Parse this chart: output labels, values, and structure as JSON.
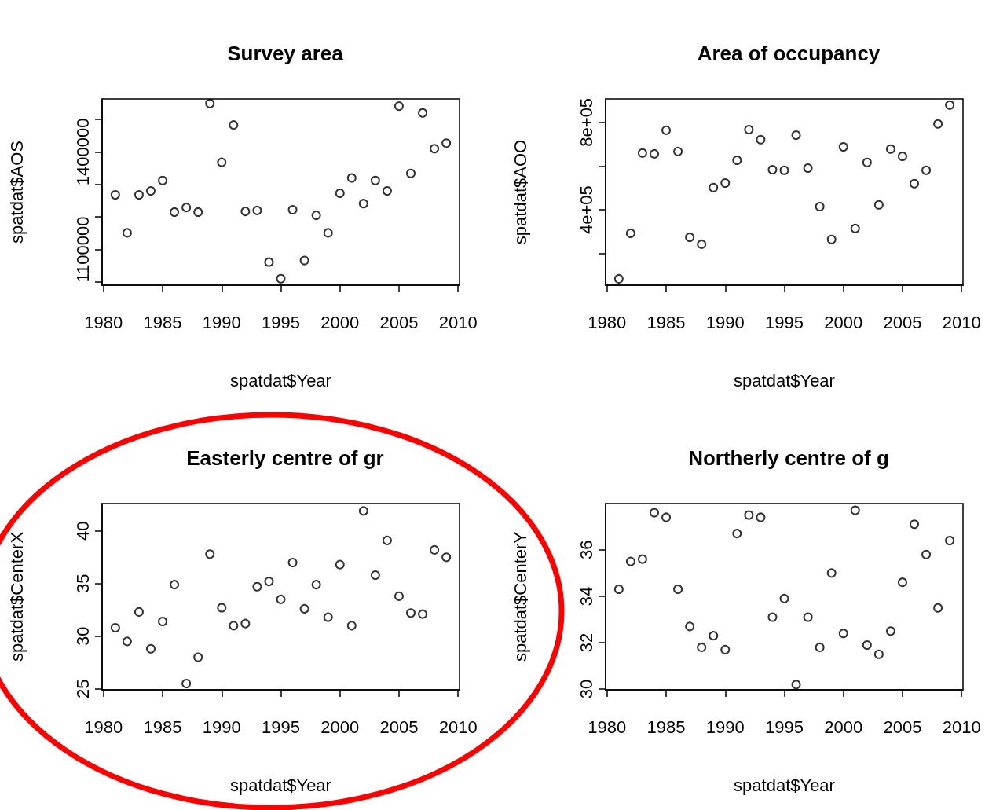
{
  "chart_data": [
    {
      "type": "scatter",
      "title": "Survey area",
      "xlabel": "spatdat$Year",
      "ylabel": "spatdat$AOS",
      "marker": "circle",
      "grid": false,
      "color": "#000000",
      "x": [
        1981,
        1982,
        1983,
        1984,
        1985,
        1986,
        1987,
        1988,
        1989,
        1990,
        1991,
        1992,
        1993,
        1994,
        1995,
        1996,
        1997,
        1998,
        1999,
        2000,
        2001,
        2002,
        2003,
        2004,
        2005,
        2006,
        2007,
        2008,
        2009
      ],
      "values": [
        1268000,
        1151000,
        1268000,
        1280000,
        1312000,
        1215000,
        1229000,
        1215000,
        1549000,
        1368000,
        1483000,
        1217000,
        1220000,
        1061000,
        1010000,
        1222000,
        1066000,
        1205000,
        1151000,
        1273000,
        1320000,
        1241000,
        1312000,
        1280000,
        1541000,
        1334000,
        1520000,
        1410000,
        1427000
      ],
      "xlim": [
        1979.88,
        2010.12
      ],
      "xticks": [
        1980,
        1985,
        1990,
        1995,
        2000,
        2005,
        2010
      ],
      "ylim": [
        990000,
        1563000
      ],
      "yticks": [
        {
          "value": 1000000,
          "label": null
        },
        1100000,
        {
          "value": 1200000,
          "label": null
        },
        {
          "value": 1300000,
          "label": null
        },
        1400000,
        {
          "value": 1500000,
          "label": null
        }
      ]
    },
    {
      "type": "scatter",
      "title": "Area of occupancy",
      "xlabel": "spatdat$Year",
      "ylabel": "spatdat$AOO",
      "marker": "circle",
      "grid": false,
      "color": "#000000",
      "x": [
        1981,
        1982,
        1983,
        1984,
        1985,
        1986,
        1987,
        1988,
        1989,
        1990,
        1991,
        1992,
        1993,
        1994,
        1995,
        1996,
        1997,
        1998,
        1999,
        2000,
        2001,
        2002,
        2003,
        2004,
        2005,
        2006,
        2007,
        2008,
        2009
      ],
      "values": [
        85000,
        293000,
        660000,
        656000,
        764000,
        667000,
        275000,
        243000,
        502000,
        523000,
        627000,
        767000,
        721000,
        584000,
        581000,
        742000,
        591000,
        415000,
        265000,
        688000,
        315000,
        617000,
        423000,
        678000,
        645000,
        520000,
        581000,
        793000,
        879000
      ],
      "xlim": [
        1979.88,
        2010.12
      ],
      "xticks": [
        1980,
        1985,
        1990,
        1995,
        2000,
        2005,
        2010
      ],
      "ylim": [
        56000,
        907000
      ],
      "yticks": [
        {
          "value": 200000,
          "label": null
        },
        {
          "value": 400000,
          "label": "4e+05"
        },
        {
          "value": 600000,
          "label": null
        },
        {
          "value": 800000,
          "label": "8e+05"
        }
      ]
    },
    {
      "type": "scatter",
      "title": "Easterly centre of gr",
      "xlabel": "spatdat$Year",
      "ylabel": "spatdat$CenterX",
      "marker": "circle",
      "grid": false,
      "color": "#000000",
      "x": [
        1981,
        1982,
        1983,
        1984,
        1985,
        1986,
        1987,
        1988,
        1989,
        1990,
        1991,
        1992,
        1993,
        1994,
        1995,
        1996,
        1997,
        1998,
        1999,
        2000,
        2001,
        2002,
        2003,
        2004,
        2005,
        2006,
        2007,
        2008,
        2009
      ],
      "values": [
        30.8,
        29.5,
        32.3,
        28.8,
        31.4,
        34.9,
        25.5,
        28.0,
        37.8,
        32.7,
        31.0,
        31.2,
        34.7,
        35.2,
        33.5,
        37.0,
        32.6,
        34.9,
        31.8,
        36.8,
        31.0,
        41.9,
        35.8,
        39.1,
        33.8,
        32.2,
        32.1,
        38.2,
        37.5
      ],
      "xlim": [
        1979.88,
        2010.12
      ],
      "xticks": [
        1980,
        1985,
        1990,
        1995,
        2000,
        2005,
        2010
      ],
      "ylim": [
        24.9,
        42.6
      ],
      "yticks": [
        25,
        30,
        35,
        40
      ]
    },
    {
      "type": "scatter",
      "title": "Northerly centre of g",
      "xlabel": "spatdat$Year",
      "ylabel": "spatdat$CenterY",
      "marker": "circle",
      "grid": false,
      "color": "#000000",
      "x": [
        1981,
        1982,
        1983,
        1984,
        1985,
        1986,
        1987,
        1988,
        1989,
        1990,
        1991,
        1992,
        1993,
        1994,
        1995,
        1996,
        1997,
        1998,
        1999,
        2000,
        2001,
        2002,
        2003,
        2004,
        2005,
        2006,
        2007,
        2008,
        2009
      ],
      "values": [
        34.3,
        35.5,
        35.6,
        37.6,
        37.4,
        34.3,
        32.7,
        31.8,
        32.3,
        31.7,
        36.7,
        37.5,
        37.4,
        33.1,
        33.9,
        30.2,
        33.1,
        31.8,
        35.0,
        32.4,
        37.7,
        31.9,
        31.5,
        32.5,
        34.6,
        37.1,
        35.8,
        33.5,
        36.4
      ],
      "xlim": [
        1979.88,
        2010.12
      ],
      "xticks": [
        1980,
        1985,
        1990,
        1995,
        2000,
        2005,
        2010
      ],
      "ylim": [
        29.97,
        37.99
      ],
      "yticks": [
        30,
        32,
        34,
        36
      ]
    }
  ]
}
